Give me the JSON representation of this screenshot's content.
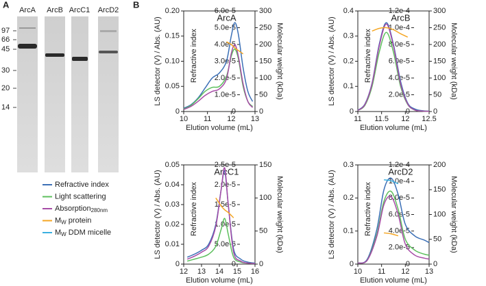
{
  "gel": {
    "label": "A",
    "lanes": [
      "ArcA",
      "ArcB",
      "ArcC1",
      "ArcD2"
    ],
    "markers": [
      97,
      66,
      45,
      30,
      20,
      14
    ]
  },
  "panel_label": "B",
  "chart_data": [
    {
      "type": "line",
      "title": "ArcA",
      "xlabel": "Elution volume (mL)",
      "ylabel": "LS detector (V) / Abs. (AU)",
      "y3label": "Refractive index",
      "y2label": "Molecular weight (kDa)",
      "x": [
        10,
        10.3,
        10.6,
        10.9,
        11.2,
        11.5,
        11.8,
        12.0,
        12.15,
        12.3,
        12.5,
        12.7,
        12.9
      ],
      "xlim": [
        10,
        13
      ],
      "xticks": [
        10,
        11,
        12,
        13
      ],
      "ylim": [
        0,
        0.2
      ],
      "yticks": [
        0,
        0.05,
        {
          "value": 0.1,
          "label": "0.10"
        },
        0.15,
        {
          "value": 0.2,
          "label": "0.20"
        }
      ],
      "y3lim": [
        0,
        6e-05
      ],
      "y3ticks": [
        0,
        {
          "value": 1e-05,
          "label": "1.0e-5"
        },
        {
          "value": 2e-05,
          "label": "2.0e-5"
        },
        {
          "value": 3e-05,
          "label": "3.0e-5"
        },
        {
          "value": 4e-05,
          "label": "4.0e-5"
        },
        {
          "value": 5e-05,
          "label": "5.0e-5"
        },
        {
          "value": 6e-05,
          "label": "6.0e-5"
        }
      ],
      "y2lim": [
        0,
        300
      ],
      "y2ticks": [
        0,
        50,
        100,
        150,
        200,
        250,
        300
      ],
      "series": [
        {
          "name": "Refractive index",
          "color": "#3b6fb6",
          "axis": "y3",
          "values": [
            2e-06,
            4e-06,
            8e-06,
            1.4e-05,
            2e-05,
            2.3e-05,
            3e-05,
            4.5e-05,
            5.3e-05,
            4.6e-05,
            2.6e-05,
            1.2e-05,
            6e-06
          ]
        },
        {
          "name": "Light scattering",
          "color": "#5cbf5c",
          "values": [
            0.005,
            0.012,
            0.025,
            0.04,
            0.048,
            0.05,
            0.07,
            0.11,
            0.124,
            0.105,
            0.05,
            0.02,
            0.01
          ]
        },
        {
          "name": [
            "Absorption",
            "280nm"
          ],
          "color": "#a64ca6",
          "values": [
            0.004,
            0.01,
            0.02,
            0.032,
            0.04,
            0.045,
            0.065,
            0.115,
            0.133,
            0.11,
            0.055,
            0.02,
            0.008
          ]
        },
        {
          "name": [
            "M",
            "W",
            " protein"
          ],
          "color": "#f5a623",
          "axis": "y2",
          "values": [
            null,
            null,
            null,
            null,
            null,
            null,
            208,
            200,
            190,
            182,
            172,
            null,
            null
          ]
        }
      ]
    },
    {
      "type": "line",
      "title": "ArcB",
      "xlabel": "Elution volume (mL)",
      "ylabel": "LS detector (V) / Abs. (AU)",
      "y3label": "Refractive index",
      "y2label": "Molecular weight (kDa)",
      "x": [
        11,
        11.15,
        11.3,
        11.45,
        11.6,
        11.75,
        11.9,
        12.05,
        12.2,
        12.35,
        12.5
      ],
      "xlim": [
        11,
        12.5
      ],
      "xticks": [
        11,
        11.5,
        12,
        12.5
      ],
      "ylim": [
        0,
        0.4
      ],
      "yticks": [
        0,
        0.1,
        0.2,
        0.3,
        0.4
      ],
      "y3lim": [
        0,
        0.00012
      ],
      "y3ticks": [
        0,
        {
          "value": 2e-05,
          "label": "2.0e-5"
        },
        {
          "value": 4e-05,
          "label": "4.0e-5"
        },
        {
          "value": 6e-05,
          "label": "6.0e-5"
        },
        {
          "value": 8e-05,
          "label": "8.0e-5"
        },
        {
          "value": 0.0001,
          "label": "1.0e-4"
        },
        {
          "value": 0.00012,
          "label": "1.2e-4"
        }
      ],
      "y2lim": [
        0,
        300
      ],
      "y2ticks": [
        0,
        50,
        100,
        150,
        200,
        250,
        300
      ],
      "series": [
        {
          "name": "Refractive index",
          "color": "#3b6fb6",
          "axis": "y3",
          "values": [
            1.5e-06,
            9e-06,
            3.4e-05,
            8e-05,
            0.000106,
            8e-05,
            3.6e-05,
            1e-05,
            3e-06,
            1e-06,
            5e-07
          ]
        },
        {
          "name": "Light scattering",
          "color": "#5cbf5c",
          "values": [
            0.004,
            0.025,
            0.1,
            0.236,
            0.315,
            0.236,
            0.1,
            0.028,
            0.006,
            0.002,
            0.001
          ]
        },
        {
          "name": [
            "Absorption",
            "280nm"
          ],
          "color": "#a64ca6",
          "values": [
            0.004,
            0.028,
            0.11,
            0.26,
            0.348,
            0.26,
            0.11,
            0.03,
            0.006,
            0.002,
            0.001
          ]
        },
        {
          "name": [
            "M",
            "W",
            " protein"
          ],
          "color": "#f5a623",
          "axis": "y2",
          "values": [
            null,
            null,
            240,
            248,
            250,
            244,
            232,
            222,
            null,
            null,
            null
          ]
        }
      ]
    },
    {
      "type": "line",
      "title": "ArcC1",
      "xlabel": "Elution volume (mL)",
      "ylabel": "LS detector (V) / Abs. (AU)",
      "y3label": "Refractive index",
      "y2label": "Molecular weight (kDa)",
      "x": [
        12.2,
        12.6,
        13,
        13.4,
        13.8,
        14.1,
        14.3,
        14.5,
        14.8,
        15.2,
        15.6,
        16
      ],
      "xlim": [
        12,
        16
      ],
      "xticks": [
        12,
        13,
        14,
        15,
        16
      ],
      "ylim": [
        0,
        0.05
      ],
      "yticks": [
        0,
        0.01,
        0.02,
        0.03,
        0.04,
        0.05
      ],
      "y3lim": [
        0,
        2.5e-05
      ],
      "y3ticks": [
        0,
        {
          "value": 5e-06,
          "label": "5.0e-6"
        },
        {
          "value": 1e-05,
          "label": "1.0e-5"
        },
        {
          "value": 1.5e-05,
          "label": "1.5e-5"
        },
        {
          "value": 2e-05,
          "label": "2.0e-5"
        },
        {
          "value": 2.5e-05,
          "label": "2.5e-5"
        }
      ],
      "y2lim": [
        0,
        150
      ],
      "y2ticks": [
        0,
        50,
        100,
        150
      ],
      "series": [
        {
          "name": "Refractive index",
          "color": "#3b6fb6",
          "axis": "y3",
          "values": [
            1.75e-06,
            2.5e-06,
            3.5e-06,
            5e-06,
            1e-05,
            1.875e-05,
            2.35e-05,
            1.5e-05,
            3.75e-06,
            1.25e-06,
            5e-07,
            2.5e-07
          ]
        },
        {
          "name": "Light scattering",
          "color": "#5cbf5c",
          "values": [
            0.0015,
            0.0025,
            0.0035,
            0.005,
            0.009,
            0.0175,
            0.023,
            0.015,
            0.0035,
            0.001,
            0.0005,
            0.00025
          ]
        },
        {
          "name": [
            "Absorption",
            "280nm"
          ],
          "color": "#a64ca6",
          "values": [
            0.0025,
            0.004,
            0.006,
            0.009,
            0.019,
            0.0375,
            0.0485,
            0.03,
            0.006,
            0.0015,
            0.0005,
            0.00025
          ]
        },
        {
          "name": [
            "M",
            "W",
            " protein"
          ],
          "color": "#f5a623",
          "axis": "y2",
          "values": [
            null,
            null,
            null,
            null,
            100,
            88,
            82,
            78,
            70,
            null,
            null,
            null
          ]
        }
      ]
    },
    {
      "type": "line",
      "title": "ArcD2",
      "xlabel": "Elution volume (mL)",
      "ylabel": "LS detector (V) / Abs. (AU)",
      "y3label": "Refractive index",
      "y2label": "Molecular weight (kDa)",
      "x": [
        10,
        10.4,
        10.8,
        11.1,
        11.4,
        11.7,
        12,
        12.4,
        12.8,
        13
      ],
      "xlim": [
        10,
        13
      ],
      "xticks": [
        10,
        11,
        12,
        13
      ],
      "ylim": [
        0,
        0.3
      ],
      "yticks": [
        0,
        0.1,
        0.2,
        0.3
      ],
      "y3lim": [
        0,
        0.00012
      ],
      "y3ticks": [
        0,
        {
          "value": 2e-05,
          "label": "2.0e-5"
        },
        {
          "value": 4e-05,
          "label": "4.0e-5"
        },
        {
          "value": 6e-05,
          "label": "6.0e-5"
        },
        {
          "value": 8e-05,
          "label": "8.0e-5"
        },
        {
          "value": 0.0001,
          "label": "1.0e-4"
        },
        {
          "value": 0.00012,
          "label": "1.2e-4"
        }
      ],
      "y2lim": [
        0,
        200
      ],
      "y2ticks": [
        0,
        50,
        100,
        150,
        200
      ],
      "series": [
        {
          "name": "Refractive index",
          "color": "#3b6fb6",
          "axis": "y3",
          "values": [
            1.2e-06,
            6e-06,
            4.2e-05,
            9e-05,
            0.000104,
            8.4e-05,
            4.8e-05,
            3.4e-05,
            2.9e-05,
            2.6e-05
          ]
        },
        {
          "name": "Light scattering",
          "color": "#5cbf5c",
          "values": [
            0.003,
            0.012,
            0.09,
            0.19,
            0.22,
            0.165,
            0.075,
            0.042,
            0.03,
            0.027
          ]
        },
        {
          "name": [
            "Absorption",
            "280nm"
          ],
          "color": "#a64ca6",
          "values": [
            0.003,
            0.012,
            0.084,
            0.18,
            0.204,
            0.15,
            0.06,
            0.027,
            0.018,
            0.015
          ]
        },
        {
          "name": [
            "M",
            "W",
            " protein"
          ],
          "color": "#f5a623",
          "axis": "y2",
          "values": [
            null,
            null,
            null,
            63,
            61,
            57,
            null,
            null,
            null,
            null
          ]
        },
        {
          "name": [
            "M",
            "W",
            " DDM micelle"
          ],
          "color": "#3aafe0",
          "axis": "y2",
          "values": [
            null,
            null,
            null,
            170,
            168,
            162,
            null,
            null,
            null,
            null
          ]
        }
      ]
    }
  ]
}
